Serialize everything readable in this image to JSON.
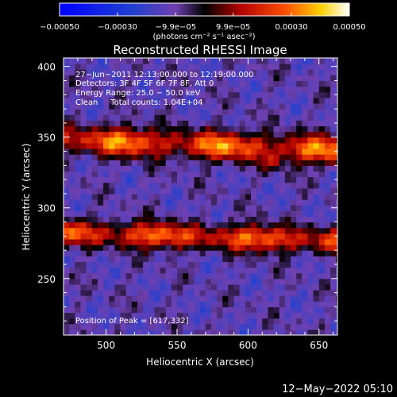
{
  "chart_data": {
    "type": "heatmap",
    "title": "Reconstructed RHESSI Image",
    "xlabel": "Heliocentric X (arcsec)",
    "ylabel": "Heliocentric Y (arcsec)",
    "xlim": [
      470,
      663
    ],
    "ylim": [
      210,
      406
    ],
    "xticks": [
      500,
      550,
      600,
      650
    ],
    "yticks": [
      250,
      300,
      350,
      400
    ],
    "colorbar": {
      "range": [
        -0.0005,
        0.0005
      ],
      "tick_labels": [
        "−0.00050",
        "−0.00030",
        "−9.9e−05",
        "9.9e−05",
        "0.00030",
        "0.00050"
      ],
      "tick_values": [
        -0.0005,
        -0.0003,
        -9.9e-05,
        9.9e-05,
        0.0003,
        0.0005
      ],
      "unit_label": "(photons cm⁻² s⁻¹ asec⁻²)"
    },
    "annotations": [
      "27−Jun−2011 12:13:00.000 to 12:19:00.000",
      "Detectors: 3F 4F 5F 6F 7F 8F, Att 0",
      "Energy Range: 25.0 − 50.0 keV",
      "Clean     Total counts: 1.04E+04"
    ],
    "peak_label": "Position of Peak = [617,332]",
    "peak": [
      617,
      332
    ],
    "ridges": [
      {
        "y_center": 345,
        "amplitude": 0.00042,
        "width": 10,
        "slope": -0.04,
        "pivot_x": 560
      },
      {
        "y_center": 280,
        "amplitude": 0.0004,
        "width": 9,
        "slope": -0.03,
        "pivot_x": 560
      }
    ],
    "background_level": -0.00012
  },
  "footer": {
    "timestamp": "12−May−2022 05:10"
  }
}
